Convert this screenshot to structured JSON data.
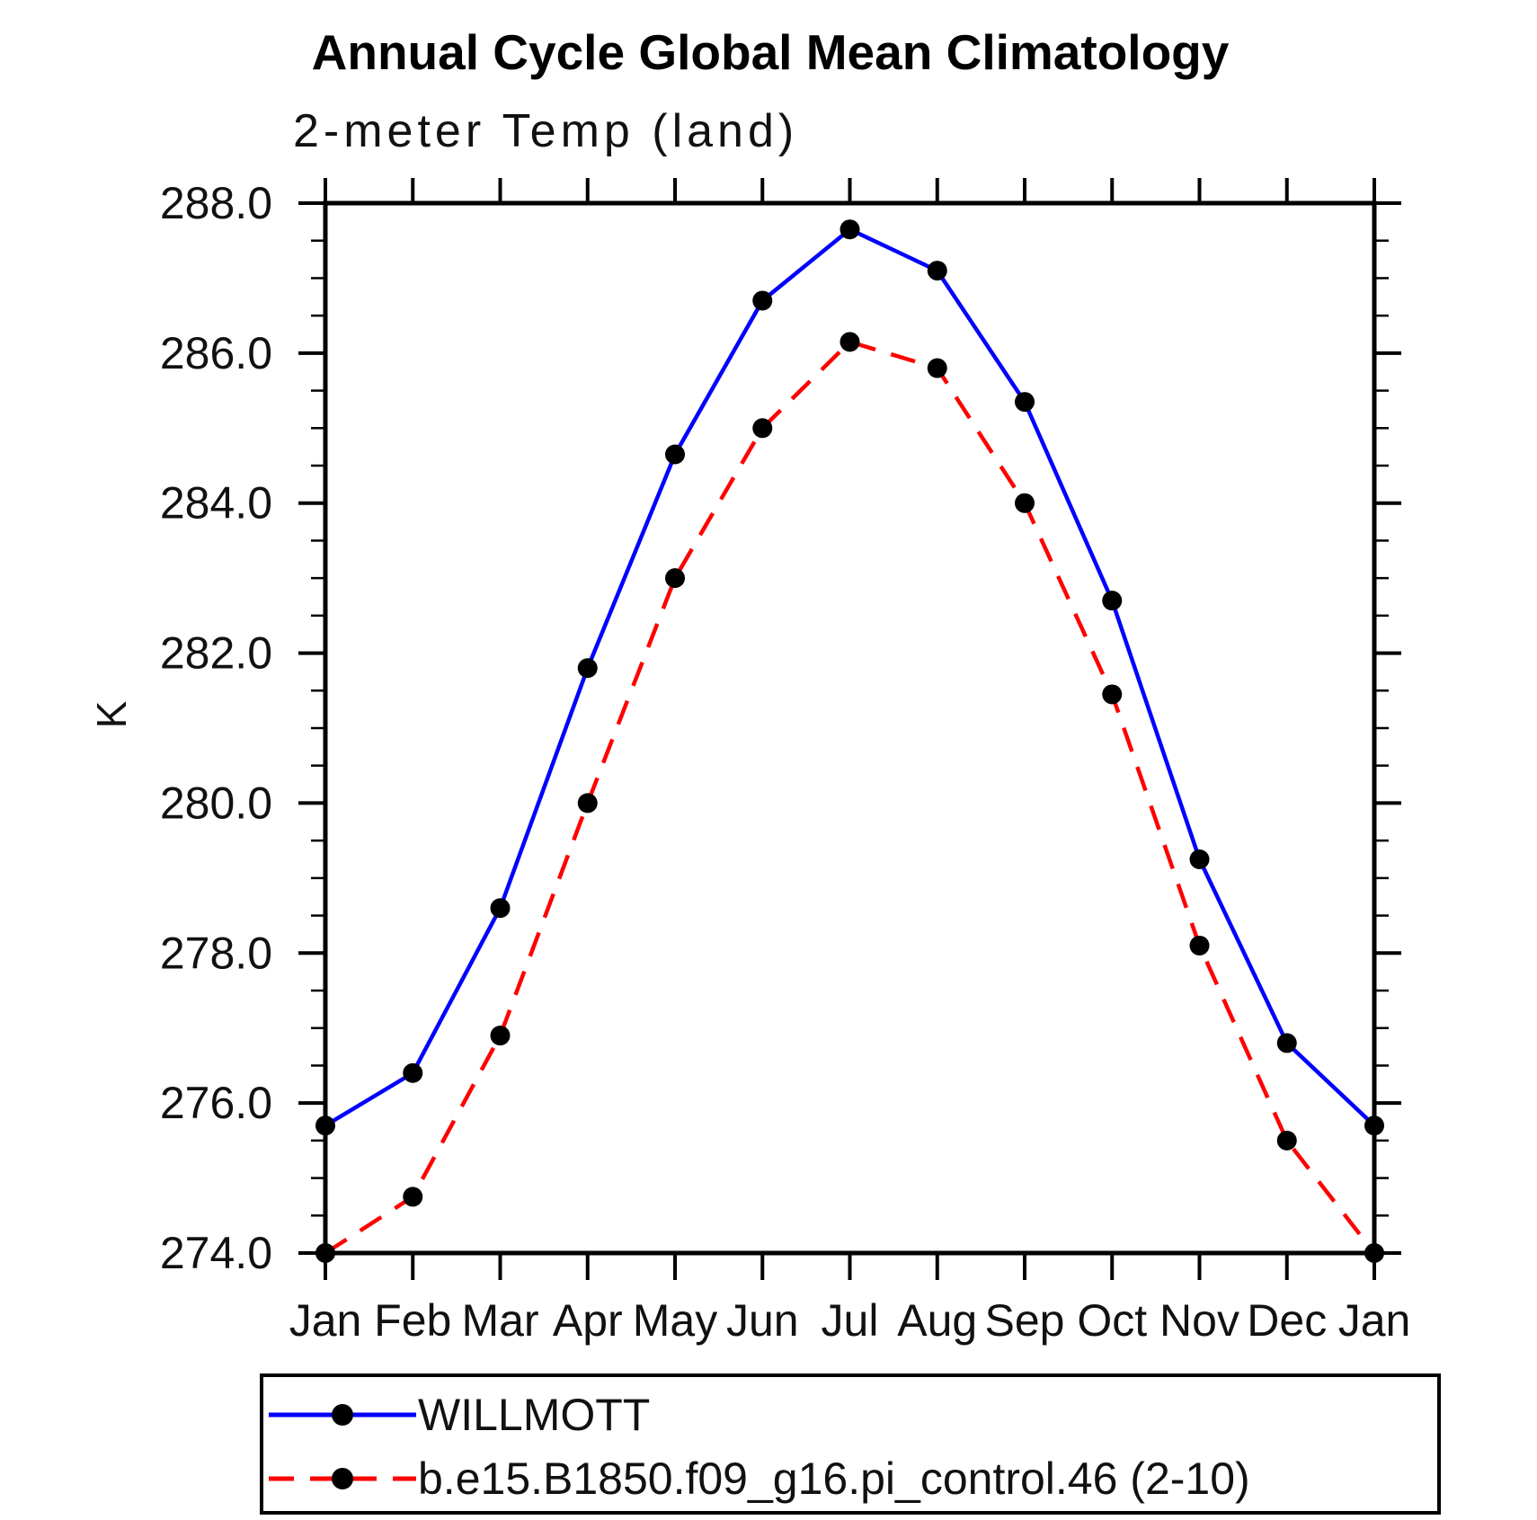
{
  "title": "Annual Cycle Global Mean Climatology",
  "subtitle": "2-meter Temp (land)",
  "chart_data": {
    "type": "line",
    "title": "Annual Cycle Global Mean Climatology",
    "subtitle": "2-meter Temp (land)",
    "ylabel": "K",
    "xlabel": "",
    "categories": [
      "Jan",
      "Feb",
      "Mar",
      "Apr",
      "May",
      "Jun",
      "Jul",
      "Aug",
      "Sep",
      "Oct",
      "Nov",
      "Dec",
      "Jan"
    ],
    "series": [
      {
        "name": "WILLMOTT",
        "color": "#0000ff",
        "line_style": "solid",
        "marker": "circle",
        "values": [
          275.7,
          276.4,
          278.6,
          281.8,
          284.65,
          286.7,
          287.65,
          287.1,
          285.35,
          282.7,
          279.25,
          276.8,
          275.7
        ]
      },
      {
        "name": "b.e15.B1850.f09_g16.pi_control.46 (2-10)",
        "color": "#ff0000",
        "line_style": "dashed",
        "marker": "circle",
        "values": [
          274.0,
          274.75,
          276.9,
          280.0,
          283.0,
          285.0,
          286.15,
          285.8,
          284.0,
          281.45,
          278.1,
          275.5,
          274.0
        ]
      }
    ],
    "ylim": [
      274.0,
      288.0
    ],
    "y_major_step": 2.0,
    "y_minor_step": 0.5,
    "y_tick_labels": [
      "274.0",
      "276.0",
      "278.0",
      "280.0",
      "282.0",
      "284.0",
      "286.0",
      "288.0"
    ],
    "marker_color": "#000000",
    "axis_color": "#000000",
    "grid": false,
    "legend_position": "bottom"
  }
}
